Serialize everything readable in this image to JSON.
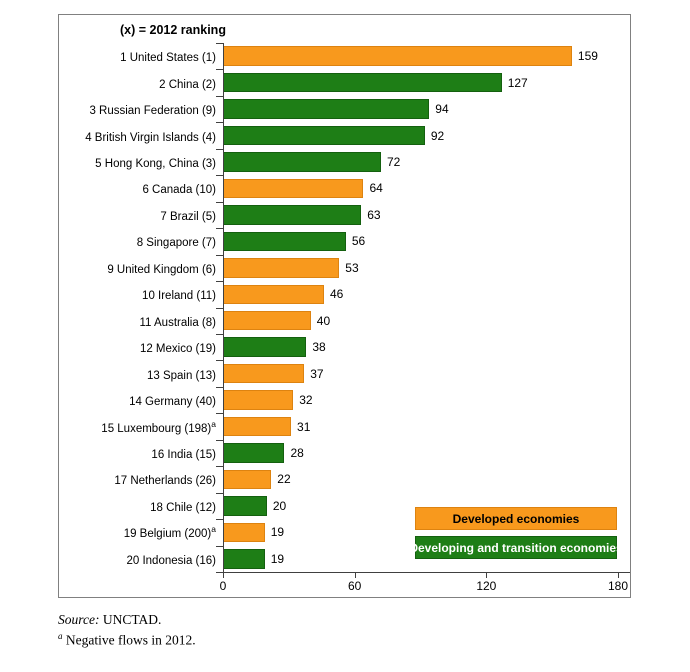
{
  "chart": {
    "title_note": "(x) = 2012 ranking",
    "legend": [
      {
        "id": "developed",
        "label": "Developed economies",
        "color": "#F8991D",
        "border": "#DD8310",
        "text_color": "#000000"
      },
      {
        "id": "developing",
        "label": "Developing and transition economies",
        "color": "#1E7E16",
        "border": "#14600F",
        "text_color": "#FFFFFF"
      }
    ],
    "footer": {
      "source_label": "Source:",
      "source_value": "UNCTAD.",
      "footnote_marker": "a",
      "footnote_text": "Negative flows in 2012."
    }
  },
  "chart_data": {
    "type": "bar",
    "orientation": "horizontal",
    "title": "(x) = 2012 ranking",
    "xlabel": "",
    "ylabel": "",
    "xlim": [
      0,
      180
    ],
    "x_ticks": [
      "0",
      "60",
      "120",
      "180"
    ],
    "grid": false,
    "legend_position": "inside-bottom-right",
    "value_labels": true,
    "colors": {
      "developed": "#F8991D",
      "developing": "#1E7E16"
    },
    "bar_borders": {
      "developed": "#DD8310",
      "developing": "#14600F"
    },
    "rows": [
      {
        "label": "1 United States (1)",
        "sup": "",
        "value": 159,
        "group": "developed"
      },
      {
        "label": "2 China (2)",
        "sup": "",
        "value": 127,
        "group": "developing"
      },
      {
        "label": "3 Russian Federation (9)",
        "sup": "",
        "value": 94,
        "group": "developing"
      },
      {
        "label": "4 British Virgin Islands (4)",
        "sup": "",
        "value": 92,
        "group": "developing"
      },
      {
        "label": "5 Hong Kong, China (3)",
        "sup": "",
        "value": 72,
        "group": "developing"
      },
      {
        "label": "6 Canada (10)",
        "sup": "",
        "value": 64,
        "group": "developed"
      },
      {
        "label": "7 Brazil (5)",
        "sup": "",
        "value": 63,
        "group": "developing"
      },
      {
        "label": "8 Singapore (7)",
        "sup": "",
        "value": 56,
        "group": "developing"
      },
      {
        "label": "9 United Kingdom (6)",
        "sup": "",
        "value": 53,
        "group": "developed"
      },
      {
        "label": "10 Ireland (11)",
        "sup": "",
        "value": 46,
        "group": "developed"
      },
      {
        "label": "11 Australia (8)",
        "sup": "",
        "value": 40,
        "group": "developed"
      },
      {
        "label": "12 Mexico (19)",
        "sup": "",
        "value": 38,
        "group": "developing"
      },
      {
        "label": "13 Spain (13)",
        "sup": "",
        "value": 37,
        "group": "developed"
      },
      {
        "label": "14 Germany (40)",
        "sup": "",
        "value": 32,
        "group": "developed"
      },
      {
        "label": "15 Luxembourg (198)",
        "sup": "a",
        "value": 31,
        "group": "developed"
      },
      {
        "label": "16 India (15)",
        "sup": "",
        "value": 28,
        "group": "developing"
      },
      {
        "label": "17 Netherlands (26)",
        "sup": "",
        "value": 22,
        "group": "developed"
      },
      {
        "label": "18 Chile (12)",
        "sup": "",
        "value": 20,
        "group": "developing"
      },
      {
        "label": "19 Belgium (200)",
        "sup": "a",
        "value": 19,
        "group": "developed"
      },
      {
        "label": "20 Indonesia (16)",
        "sup": "",
        "value": 19,
        "group": "developing"
      }
    ]
  }
}
